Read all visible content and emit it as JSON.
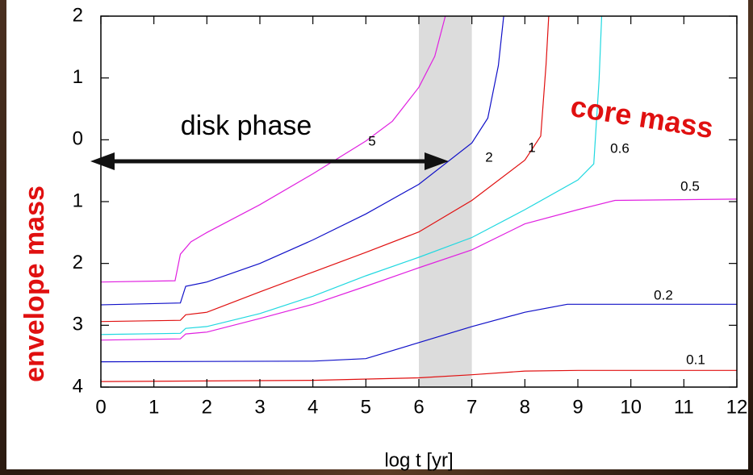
{
  "chart_data": {
    "type": "line",
    "xlabel": "log t [yr]",
    "annotations": {
      "disk": "disk phase",
      "core": "core mass",
      "envelope": "envelope mass"
    },
    "shaded_xrange": [
      6,
      7
    ],
    "xlim": [
      0,
      12
    ],
    "ylim": [
      -4,
      2
    ],
    "xticks": [
      0,
      1,
      2,
      3,
      4,
      5,
      6,
      7,
      8,
      9,
      10,
      11,
      12
    ],
    "yticks": [
      2,
      1,
      0,
      {
        "value": -1,
        "label": "1"
      },
      {
        "value": -2,
        "label": "2"
      },
      {
        "value": -3,
        "label": "3"
      },
      {
        "value": -4,
        "label": "4"
      }
    ],
    "series": [
      {
        "name": "5",
        "color": "#e020e0",
        "x": [
          0,
          1.4,
          1.5,
          1.7,
          2,
          3,
          4,
          5,
          5.5,
          6,
          6.3,
          6.5
        ],
        "values": [
          -2.3,
          -2.28,
          -1.85,
          -1.65,
          -1.5,
          -1.05,
          -0.55,
          -0.02,
          0.3,
          0.85,
          1.35,
          2.0
        ]
      },
      {
        "name": "2",
        "color": "#1010c8",
        "x": [
          0,
          1.5,
          1.6,
          2,
          3,
          4,
          5,
          6,
          7,
          7.3,
          7.5,
          7.6
        ],
        "values": [
          -2.67,
          -2.64,
          -2.37,
          -2.3,
          -2.0,
          -1.62,
          -1.2,
          -0.72,
          -0.05,
          0.35,
          1.2,
          2.0
        ]
      },
      {
        "name": "1",
        "color": "#e01010",
        "x": [
          0,
          1.5,
          1.6,
          2,
          3,
          4,
          5,
          6,
          7,
          8,
          8.3,
          8.4,
          8.45
        ],
        "values": [
          -2.94,
          -2.92,
          -2.83,
          -2.79,
          -2.46,
          -2.14,
          -1.82,
          -1.49,
          -0.98,
          -0.33,
          0.06,
          1.22,
          2.0
        ]
      },
      {
        "name": "0.6",
        "color": "#20d8e0",
        "x": [
          0,
          1.5,
          1.6,
          2,
          3,
          4,
          5,
          6,
          7,
          8,
          9,
          9.3,
          9.4,
          9.45
        ],
        "values": [
          -3.15,
          -3.13,
          -3.05,
          -3.02,
          -2.81,
          -2.53,
          -2.2,
          -1.9,
          -1.58,
          -1.13,
          -0.65,
          -0.39,
          0.97,
          2.0
        ]
      },
      {
        "name": "0.5",
        "color": "#e020e0",
        "x": [
          0,
          1.5,
          1.6,
          2,
          3,
          4,
          5,
          6,
          7,
          8,
          9,
          9.7,
          12
        ],
        "values": [
          -3.24,
          -3.22,
          -3.14,
          -3.11,
          -2.89,
          -2.66,
          -2.37,
          -2.07,
          -1.78,
          -1.36,
          -1.13,
          -0.98,
          -0.96
        ]
      },
      {
        "name": "0.2",
        "color": "#1010c8",
        "x": [
          0,
          4,
          5,
          6,
          7,
          8,
          8.8,
          12
        ],
        "values": [
          -3.59,
          -3.58,
          -3.54,
          -3.28,
          -3.02,
          -2.79,
          -2.66,
          -2.66
        ]
      },
      {
        "name": "0.1",
        "color": "#e01010",
        "x": [
          0,
          4,
          6,
          7,
          8,
          9,
          12
        ],
        "values": [
          -3.91,
          -3.89,
          -3.85,
          -3.8,
          -3.74,
          -3.73,
          -3.73
        ]
      }
    ]
  }
}
